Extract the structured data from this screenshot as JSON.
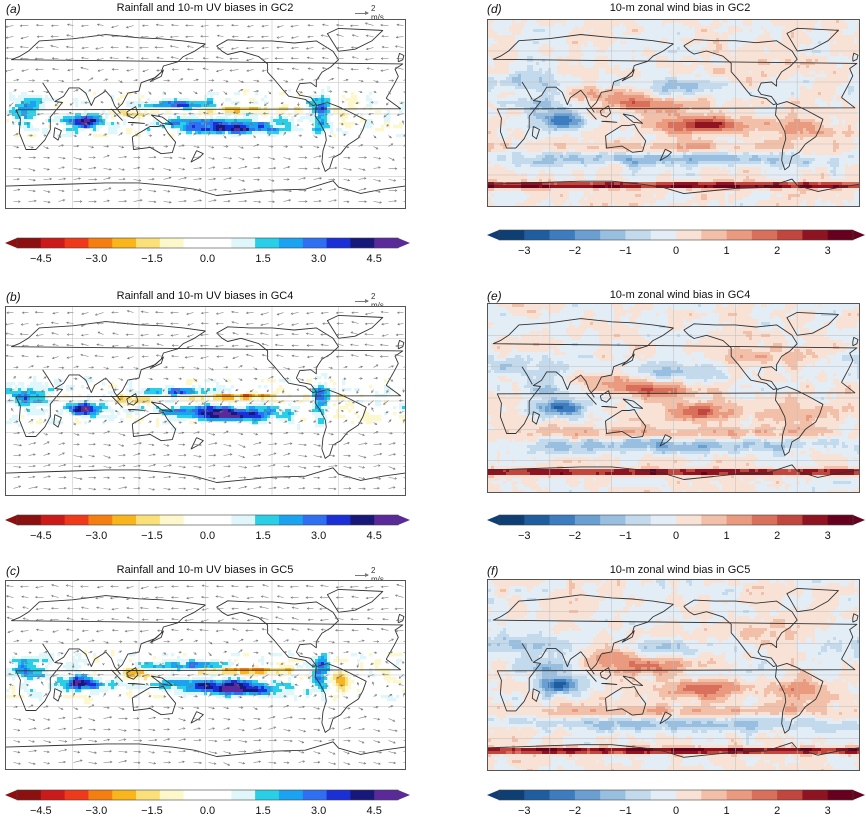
{
  "panels": [
    {
      "id": "a",
      "label": "(a)",
      "title": "Rainfall and 10-m UV biases in GC2",
      "type": "rain",
      "ref_vector": "2 m/s"
    },
    {
      "id": "b",
      "label": "(b)",
      "title": "Rainfall and 10-m UV biases in GC4",
      "type": "rain",
      "ref_vector": "2 m/s"
    },
    {
      "id": "c",
      "label": "(c)",
      "title": "Rainfall and 10-m UV biases in GC5",
      "type": "rain",
      "ref_vector": "2 m/s"
    },
    {
      "id": "d",
      "label": "(d)",
      "title": "10-m zonal wind bias in GC2",
      "type": "wind"
    },
    {
      "id": "e",
      "label": "(e)",
      "title": "10-m zonal wind bias in GC4",
      "type": "wind"
    },
    {
      "id": "f",
      "label": "(f)",
      "title": "10-m zonal wind bias in GC5",
      "type": "wind"
    }
  ],
  "chart_data": [
    {
      "type": "heatmap",
      "title": "Rainfall and 10-m UV biases",
      "colorbar": {
        "ticks": [
          "−4.5",
          "−3.0",
          "−1.5",
          "0.0",
          "1.5",
          "3.0",
          "4.5"
        ],
        "colors": [
          "#8c1010",
          "#cc1a1a",
          "#ee3a1a",
          "#f57e10",
          "#f9b51c",
          "#fbe07a",
          "#fdf7cc",
          "#ffffff",
          "#ffffff",
          "#dff7fb",
          "#28cfe6",
          "#1aa3f0",
          "#2f6ff2",
          "#1b2fd6",
          "#18187a",
          "#5a2a9a"
        ],
        "extend": "both"
      }
    },
    {
      "type": "heatmap",
      "title": "10-m zonal wind bias",
      "colorbar": {
        "ticks": [
          "−3",
          "−2",
          "−1",
          "0",
          "1",
          "2",
          "3"
        ],
        "colors": [
          "#0d3f75",
          "#1f5d9e",
          "#3d7cbe",
          "#6a9fd2",
          "#99bfe0",
          "#c3d9ec",
          "#e3edf6",
          "#f8e2d6",
          "#f2c0a8",
          "#ea9a7f",
          "#d8705b",
          "#c1463e",
          "#8f1320",
          "#67001f"
        ],
        "extend": "both"
      }
    }
  ]
}
